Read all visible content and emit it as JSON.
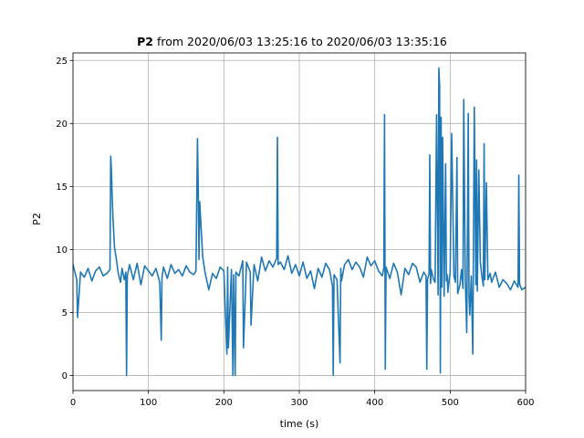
{
  "chart_data": {
    "type": "line",
    "title_bold": "P2",
    "title_rest": " from 2020/06/03 13:25:16 to 2020/06/03 13:35:16",
    "xlabel": "time (s)",
    "ylabel": "P2",
    "xlim": [
      0,
      600
    ],
    "ylim": [
      -1.2,
      25.6
    ],
    "xticks": [
      0,
      100,
      200,
      300,
      400,
      500,
      600
    ],
    "yticks": [
      0,
      5,
      10,
      15,
      20,
      25
    ],
    "grid": true,
    "series": [
      {
        "color": "#1f77b4",
        "x": [
          0,
          5,
          6,
          10,
          15,
          20,
          25,
          30,
          35,
          40,
          45,
          49,
          50,
          51,
          52,
          53,
          55,
          58,
          60,
          63,
          65,
          68,
          70,
          71,
          72,
          75,
          80,
          85,
          90,
          95,
          100,
          105,
          110,
          115,
          117,
          118,
          120,
          125,
          130,
          135,
          140,
          145,
          150,
          155,
          160,
          163,
          165,
          166,
          167,
          168,
          170,
          172,
          175,
          180,
          185,
          190,
          195,
          200,
          204,
          205,
          206,
          210,
          212,
          213,
          215,
          216,
          220,
          225,
          226,
          230,
          235,
          236,
          240,
          245,
          250,
          255,
          260,
          265,
          270,
          271,
          272,
          275,
          280,
          285,
          290,
          295,
          300,
          305,
          310,
          315,
          320,
          325,
          330,
          335,
          340,
          344,
          345,
          346,
          350,
          354,
          355,
          356,
          360,
          365,
          370,
          375,
          380,
          385,
          390,
          395,
          400,
          405,
          410,
          412,
          413,
          414,
          415,
          420,
          425,
          430,
          435,
          440,
          445,
          450,
          455,
          460,
          465,
          468,
          469,
          470,
          472,
          473,
          474,
          475,
          478,
          480,
          482,
          484,
          485,
          486,
          487,
          488,
          489,
          490,
          492,
          494,
          495,
          496,
          497,
          499,
          500,
          502,
          505,
          507,
          509,
          510,
          513,
          515,
          517,
          518,
          520,
          522,
          524,
          525,
          526,
          528,
          530,
          532,
          534,
          535,
          536,
          538,
          540,
          542,
          544,
          545,
          546,
          548,
          550,
          553,
          555,
          560,
          565,
          570,
          575,
          580,
          585,
          590,
          591,
          592,
          593,
          595,
          600
        ],
        "y": [
          8.8,
          7.6,
          4.6,
          8.2,
          7.8,
          8.5,
          7.5,
          8.3,
          8.6,
          7.9,
          8.1,
          8.4,
          17.4,
          16.2,
          14.0,
          12.5,
          10.2,
          9.0,
          8.1,
          7.4,
          8.5,
          7.6,
          8.2,
          0.0,
          7.9,
          8.8,
          7.6,
          8.9,
          7.2,
          8.7,
          8.3,
          7.9,
          8.5,
          7.4,
          2.8,
          7.8,
          8.6,
          7.7,
          8.8,
          8.1,
          8.4,
          7.9,
          8.7,
          8.2,
          8.0,
          8.3,
          18.8,
          15.0,
          9.2,
          13.8,
          11.5,
          9.4,
          8.2,
          6.8,
          8.1,
          7.7,
          8.6,
          8.3,
          1.7,
          8.6,
          2.2,
          8.4,
          0.0,
          8.0,
          0.0,
          8.2,
          7.9,
          9.1,
          2.2,
          9.0,
          8.2,
          4.0,
          8.8,
          7.5,
          9.4,
          8.3,
          9.1,
          8.6,
          9.3,
          18.9,
          8.8,
          9.0,
          8.4,
          9.5,
          8.1,
          8.8,
          7.9,
          9.0,
          7.7,
          8.3,
          6.9,
          8.5,
          7.8,
          8.9,
          8.4,
          7.1,
          0.0,
          8.0,
          7.6,
          1.0,
          8.5,
          7.5,
          8.8,
          9.2,
          8.4,
          9.0,
          8.6,
          7.8,
          9.4,
          8.7,
          9.1,
          8.3,
          7.9,
          8.5,
          20.7,
          0.5,
          8.6,
          7.7,
          8.9,
          8.2,
          6.4,
          8.5,
          8.0,
          8.9,
          8.6,
          7.4,
          8.2,
          7.9,
          0.5,
          7.6,
          8.1,
          17.5,
          7.3,
          8.4,
          7.6,
          7.4,
          20.7,
          6.4,
          24.4,
          23.0,
          0.2,
          20.5,
          7.0,
          18.9,
          6.3,
          16.8,
          7.5,
          8.0,
          6.6,
          7.8,
          8.1,
          19.2,
          7.9,
          7.4,
          17.3,
          6.5,
          7.2,
          8.4,
          6.9,
          21.9,
          7.8,
          3.4,
          20.8,
          6.2,
          4.8,
          7.9,
          1.7,
          21.3,
          7.2,
          17.1,
          6.7,
          16.3,
          9.0,
          7.9,
          7.1,
          18.4,
          7.6,
          15.3,
          7.6,
          8.1,
          7.4,
          8.2,
          7.0,
          7.6,
          7.3,
          6.8,
          7.5,
          7.0,
          15.9,
          7.3,
          7.1,
          6.8,
          7.0
        ]
      }
    ]
  }
}
